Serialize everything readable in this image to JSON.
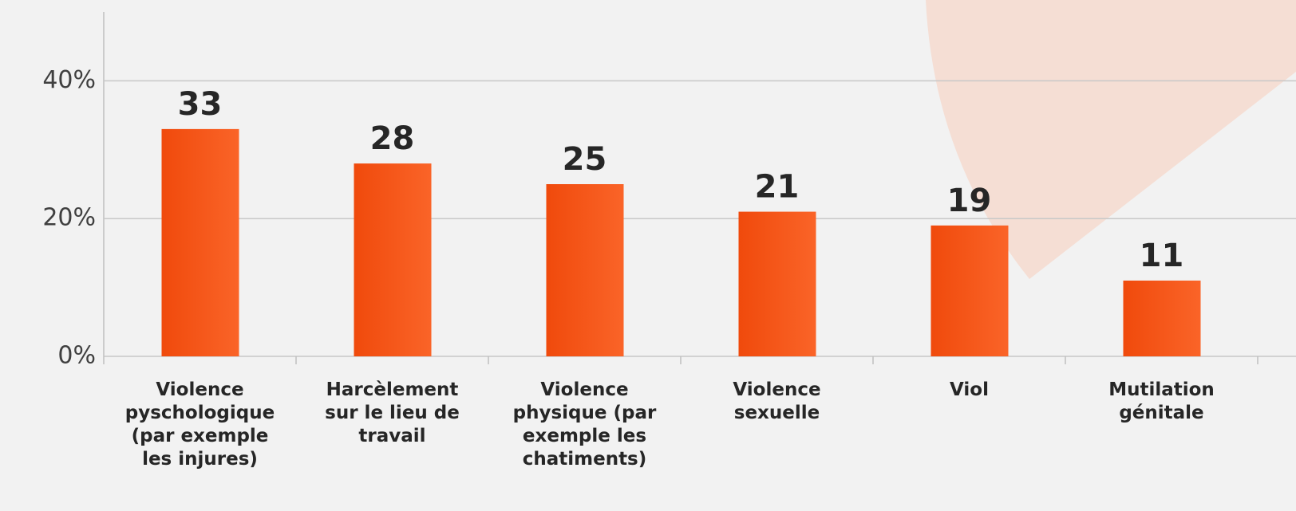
{
  "chart_data": {
    "type": "bar",
    "categories": [
      "Violence\npyschologique\n(par exemple\nles injures)",
      "Harcèlement\nsur le lieu de\ntravail",
      "Violence\nphysique (par\nexemple les\nchatiments)",
      "Violence\nsexuelle",
      "Viol",
      "Mutilation\ngénitale"
    ],
    "values": [
      33,
      28,
      25,
      21,
      19,
      11
    ],
    "color": "#f04a0c",
    "ylim": [
      0,
      50
    ],
    "yticks": [
      {
        "value": 0,
        "label": "0%"
      },
      {
        "value": 20,
        "label": "20%"
      },
      {
        "value": 40,
        "label": "40%"
      }
    ],
    "grid": true
  }
}
